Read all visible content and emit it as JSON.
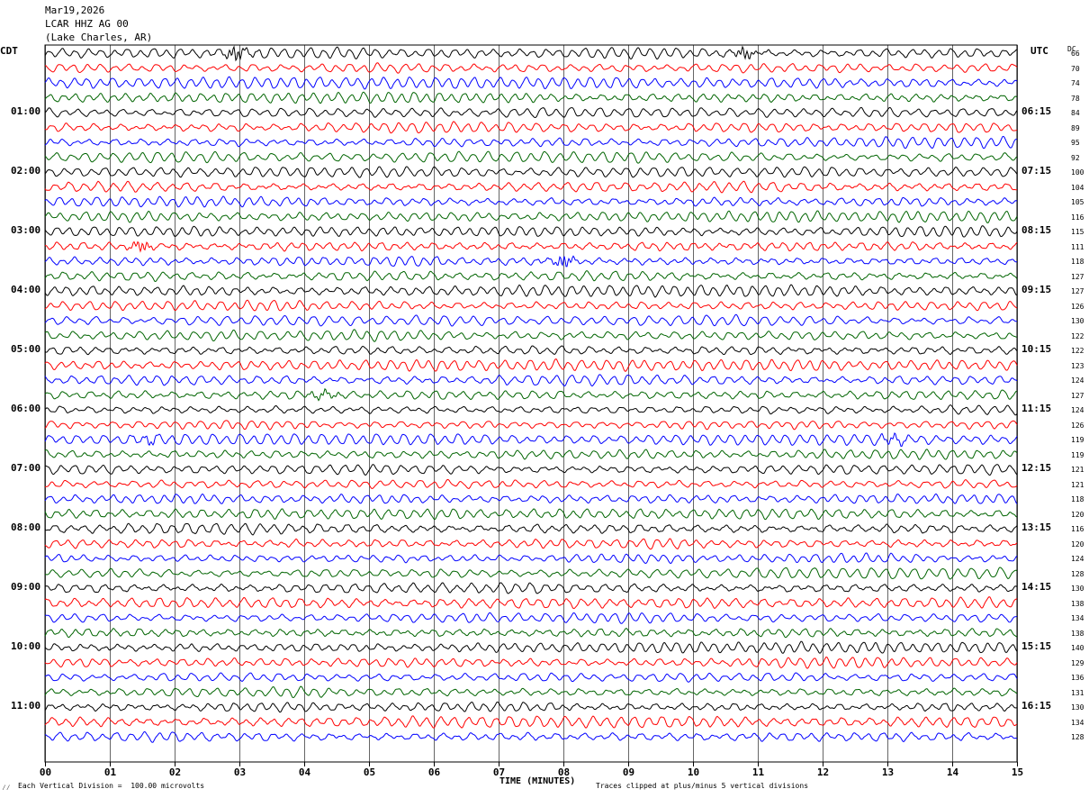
{
  "header": {
    "date": "Mar19,2026",
    "station": "LCAR HHZ AG 00",
    "location": "(Lake Charles, AR)"
  },
  "labels": {
    "left_zone": "CDT",
    "right_zone": "UTC",
    "dc": "DC",
    "xlabel": "TIME (MINUTES)"
  },
  "footer": {
    "scale": "Each Vertical Division =  100.00 microvolts",
    "clip": "Traces clipped at plus/minus 5 vertical divisions",
    "mark": "⁄⁄"
  },
  "colors": [
    "#000000",
    "#ff0000",
    "#0000ff",
    "#006400"
  ],
  "chart_data": {
    "type": "line",
    "title": "",
    "xlabel": "TIME (MINUTES)",
    "xlim": [
      0,
      15
    ],
    "x_ticks": [
      "00",
      "01",
      "02",
      "03",
      "04",
      "05",
      "06",
      "07",
      "08",
      "09",
      "10",
      "11",
      "12",
      "13",
      "14",
      "15"
    ],
    "minutes_per_line": 15,
    "left_hour_labels": [
      {
        "line": 4,
        "label": "01:00"
      },
      {
        "line": 8,
        "label": "02:00"
      },
      {
        "line": 12,
        "label": "03:00"
      },
      {
        "line": 16,
        "label": "04:00"
      },
      {
        "line": 20,
        "label": "05:00"
      },
      {
        "line": 24,
        "label": "06:00"
      },
      {
        "line": 28,
        "label": "07:00"
      },
      {
        "line": 32,
        "label": "08:00"
      },
      {
        "line": 36,
        "label": "09:00"
      },
      {
        "line": 40,
        "label": "10:00"
      },
      {
        "line": 44,
        "label": "11:00"
      }
    ],
    "right_hour_labels": [
      {
        "line": 4,
        "label": "06:15"
      },
      {
        "line": 8,
        "label": "07:15"
      },
      {
        "line": 12,
        "label": "08:15"
      },
      {
        "line": 16,
        "label": "09:15"
      },
      {
        "line": 20,
        "label": "10:15"
      },
      {
        "line": 24,
        "label": "11:15"
      },
      {
        "line": 28,
        "label": "12:15"
      },
      {
        "line": 32,
        "label": "13:15"
      },
      {
        "line": 36,
        "label": "14:15"
      },
      {
        "line": 40,
        "label": "15:15"
      },
      {
        "line": 44,
        "label": "16:15"
      }
    ],
    "dc_offsets": [
      66,
      70,
      74,
      78,
      84,
      89,
      95,
      92,
      100,
      104,
      105,
      116,
      115,
      111,
      118,
      127,
      127,
      126,
      130,
      122,
      122,
      123,
      124,
      127,
      124,
      126,
      119,
      119,
      121,
      121,
      118,
      120,
      116,
      120,
      124,
      128,
      130,
      138,
      134,
      138,
      140,
      129,
      136,
      131,
      130,
      134,
      128
    ],
    "events": [
      {
        "line": 0,
        "minute": 2.95,
        "amplitude": 2.2
      },
      {
        "line": 0,
        "minute": 10.8,
        "amplitude": 1.8
      },
      {
        "line": 13,
        "minute": 1.5,
        "amplitude": 1.6
      },
      {
        "line": 14,
        "minute": 8.0,
        "amplitude": 2.0
      },
      {
        "line": 23,
        "minute": 4.3,
        "amplitude": 1.2
      },
      {
        "line": 26,
        "minute": 1.6,
        "amplitude": 1.0
      },
      {
        "line": 26,
        "minute": 13.1,
        "amplitude": 1.2
      }
    ]
  }
}
